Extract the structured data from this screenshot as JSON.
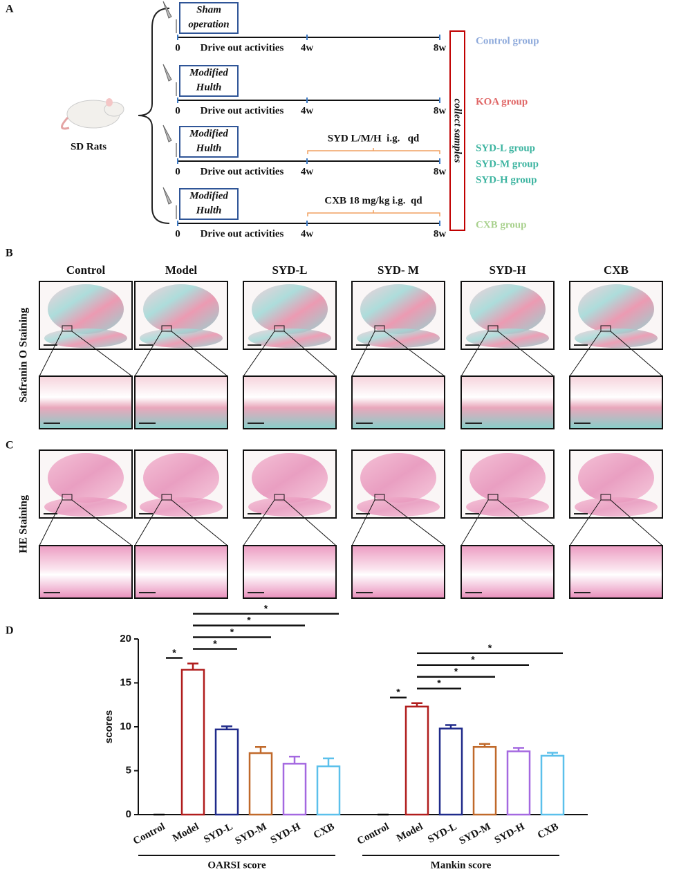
{
  "diagram": {
    "label": "A",
    "subject": "SD Rats",
    "collect": "collect samples",
    "rows": [
      {
        "procedure": [
          "Sham",
          "operation"
        ],
        "activity": "Drive out activities",
        "times": [
          "0",
          "4w",
          "8w"
        ]
      },
      {
        "procedure": [
          "Modified",
          "Hulth"
        ],
        "activity": "Drive out activities",
        "times": [
          "0",
          "4w",
          "8w"
        ]
      },
      {
        "procedure": [
          "Modified",
          "Hulth"
        ],
        "activity": "Drive out activities",
        "times": [
          "0",
          "4w",
          "8w"
        ],
        "treatment": "SYD L/M/H  i.g.   qd"
      },
      {
        "procedure": [
          "Modified",
          "Hulth"
        ],
        "activity": "Drive out activities",
        "times": [
          "0",
          "4w",
          "8w"
        ],
        "treatment": "CXB 18 mg/kg i.g.  qd"
      }
    ],
    "groups": [
      {
        "label": "Control group",
        "color": "#8eaadb"
      },
      {
        "label": "KOA group",
        "color": "#e06666"
      },
      {
        "label": "SYD-L group",
        "color": "#3cb4a0"
      },
      {
        "label": "SYD-M group",
        "color": "#3cb4a0"
      },
      {
        "label": "SYD-H group",
        "color": "#3cb4a0"
      },
      {
        "label": "CXB group",
        "color": "#a9d18e"
      }
    ]
  },
  "histology": {
    "columns": [
      "Control",
      "Model",
      "SYD-L",
      "SYD- M",
      "SYD-H",
      "CXB"
    ],
    "panels": [
      {
        "label": "B",
        "stain": "Safranin O Staining"
      },
      {
        "label": "C",
        "stain": "HE Staining"
      }
    ]
  },
  "chart_data": {
    "type": "bar",
    "panel_label": "D",
    "ylabel": "scores",
    "ylim": [
      0,
      20
    ],
    "yticks": [
      0,
      5,
      10,
      15,
      20
    ],
    "categories": [
      "Control",
      "Model",
      "SYD-L",
      "SYD-M",
      "SYD-H",
      "CXB"
    ],
    "colors": [
      "#000000",
      "#b01c1c",
      "#1f2a8a",
      "#c0692a",
      "#a468e0",
      "#5bc0eb"
    ],
    "series": [
      {
        "name": "OARSI score",
        "values": [
          0,
          16.5,
          9.7,
          7.0,
          5.8,
          5.5
        ],
        "errors": [
          0,
          0.7,
          0.35,
          0.7,
          0.8,
          0.9
        ],
        "significance": [
          {
            "pair": [
              "Control",
              "Model"
            ],
            "label": "*"
          },
          {
            "pair": [
              "Model",
              "SYD-L"
            ],
            "label": "*"
          },
          {
            "pair": [
              "Model",
              "SYD-M"
            ],
            "label": "*"
          },
          {
            "pair": [
              "Model",
              "SYD-H"
            ],
            "label": "*"
          },
          {
            "pair": [
              "Model",
              "CXB"
            ],
            "label": "*"
          }
        ]
      },
      {
        "name": "Mankin score",
        "values": [
          0,
          12.3,
          9.8,
          7.7,
          7.2,
          6.7
        ],
        "errors": [
          0,
          0.4,
          0.4,
          0.35,
          0.4,
          0.35
        ],
        "significance": [
          {
            "pair": [
              "Control",
              "Model"
            ],
            "label": "*"
          },
          {
            "pair": [
              "Model",
              "SYD-L"
            ],
            "label": "*"
          },
          {
            "pair": [
              "Model",
              "SYD-M"
            ],
            "label": "*"
          },
          {
            "pair": [
              "Model",
              "SYD-H"
            ],
            "label": "*"
          },
          {
            "pair": [
              "Model",
              "CXB"
            ],
            "label": "*"
          }
        ]
      }
    ]
  }
}
